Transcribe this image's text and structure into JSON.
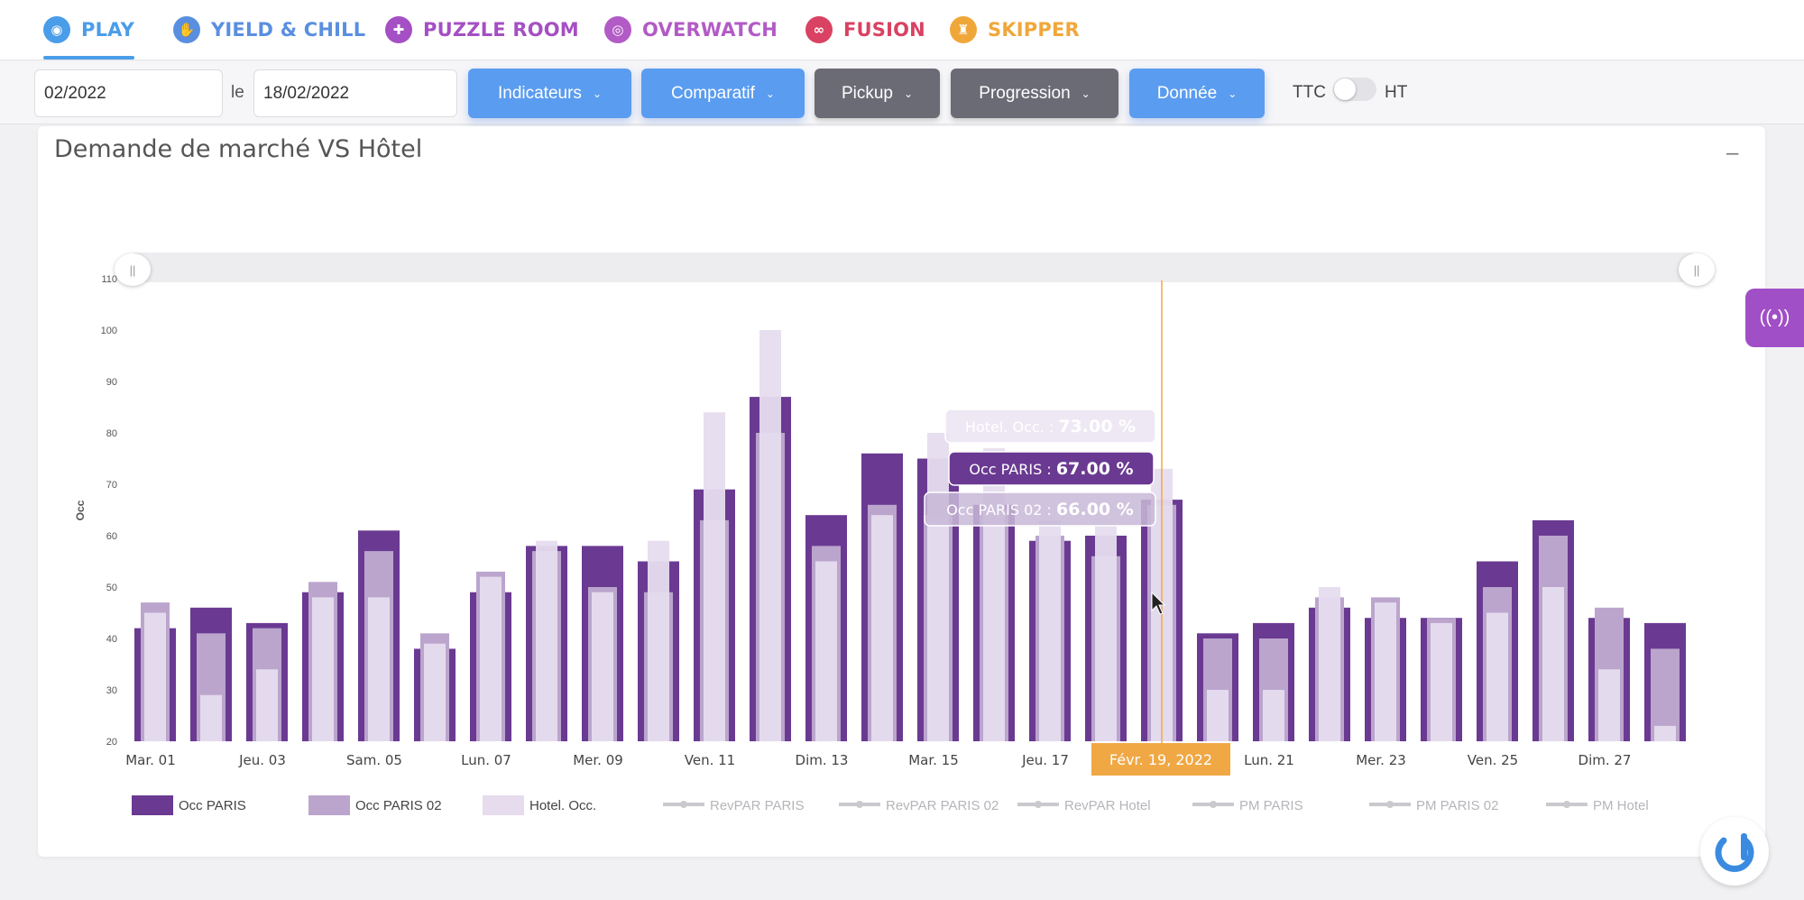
{
  "nav": {
    "tabs": [
      {
        "label": "PLAY",
        "color": "#4a9de8",
        "icon": "gamepad-icon",
        "active": true
      },
      {
        "label": "YIELD & CHILL",
        "color": "#5a8fe0",
        "icon": "hand-icon"
      },
      {
        "label": "PUZZLE ROOM",
        "color": "#a54fc4",
        "icon": "puzzle-icon"
      },
      {
        "label": "OVERWATCH",
        "color": "#b25bc6",
        "icon": "target-icon"
      },
      {
        "label": "FUSION",
        "color": "#d94262",
        "icon": "fusion-icon"
      },
      {
        "label": "SKIPPER",
        "color": "#f0a73a",
        "icon": "chess-icon"
      }
    ]
  },
  "filters": {
    "date_from": "02/2022",
    "le_label": "le",
    "date_to": "18/02/2022",
    "buttons": [
      {
        "label": "Indicateurs",
        "style": "blue"
      },
      {
        "label": "Comparatif",
        "style": "blue"
      },
      {
        "label": "Pickup",
        "style": "gray"
      },
      {
        "label": "Progression",
        "style": "gray"
      },
      {
        "label": "Donnée",
        "style": "blue"
      }
    ],
    "ttc_label": "TTC",
    "ht_label": "HT"
  },
  "card": {
    "title": "Demande de marché VS Hôtel",
    "collapse_label": "–"
  },
  "colors": {
    "occ_paris": "#6a3a92",
    "occ_paris_02": "#bba5cd",
    "hotel_occ": "#e6dcee",
    "crosshair": "#f0a845",
    "highlight": "#f0a845"
  },
  "chart_data": {
    "type": "bar",
    "ylabel": "Occ",
    "ylim": [
      20,
      110
    ],
    "yticks": [
      20,
      30,
      40,
      50,
      60,
      70,
      80,
      90,
      100,
      110
    ],
    "x_tick_labels": [
      "Mar. 01",
      "Jeu. 03",
      "Sam. 05",
      "Lun. 07",
      "Mer. 09",
      "Ven. 11",
      "Dim. 13",
      "Mar. 15",
      "Jeu. 17",
      "Févr. 19, 2022",
      "Lun. 21",
      "Mer. 23",
      "Ven. 25",
      "Dim. 27"
    ],
    "days": 28,
    "highlight_day": 19,
    "series": [
      {
        "name": "Occ PARIS",
        "values": [
          42,
          46,
          43,
          49,
          61,
          38,
          49,
          58,
          58,
          55,
          69,
          87,
          64,
          76,
          75,
          66,
          59,
          60,
          67,
          41,
          43,
          46,
          44,
          44,
          55,
          63,
          44,
          43
        ]
      },
      {
        "name": "Occ PARIS 02",
        "values": [
          47,
          41,
          42,
          51,
          57,
          41,
          53,
          57,
          50,
          49,
          63,
          80,
          58,
          66,
          64,
          65,
          60,
          56,
          66,
          40,
          40,
          48,
          48,
          44,
          50,
          60,
          46,
          38
        ]
      },
      {
        "name": "Hotel. Occ.",
        "values": [
          45,
          29,
          34,
          48,
          48,
          39,
          52,
          59,
          49,
          59,
          84,
          100,
          55,
          64,
          80,
          77,
          63,
          62,
          73,
          30,
          30,
          50,
          47,
          43,
          45,
          50,
          34,
          23
        ]
      }
    ],
    "tooltip": [
      {
        "label": "Hotel. Occ.",
        "value": "73.00 %"
      },
      {
        "label": "Occ PARIS",
        "value": "67.00 %"
      },
      {
        "label": "Occ PARIS 02",
        "value": "66.00 %"
      }
    ],
    "legend": [
      "Occ PARIS",
      "Occ PARIS 02",
      "Hotel. Occ.",
      "RevPAR PARIS",
      "RevPAR PARIS 02",
      "RevPAR Hotel",
      "PM PARIS",
      "PM PARIS 02",
      "PM Hotel"
    ]
  }
}
